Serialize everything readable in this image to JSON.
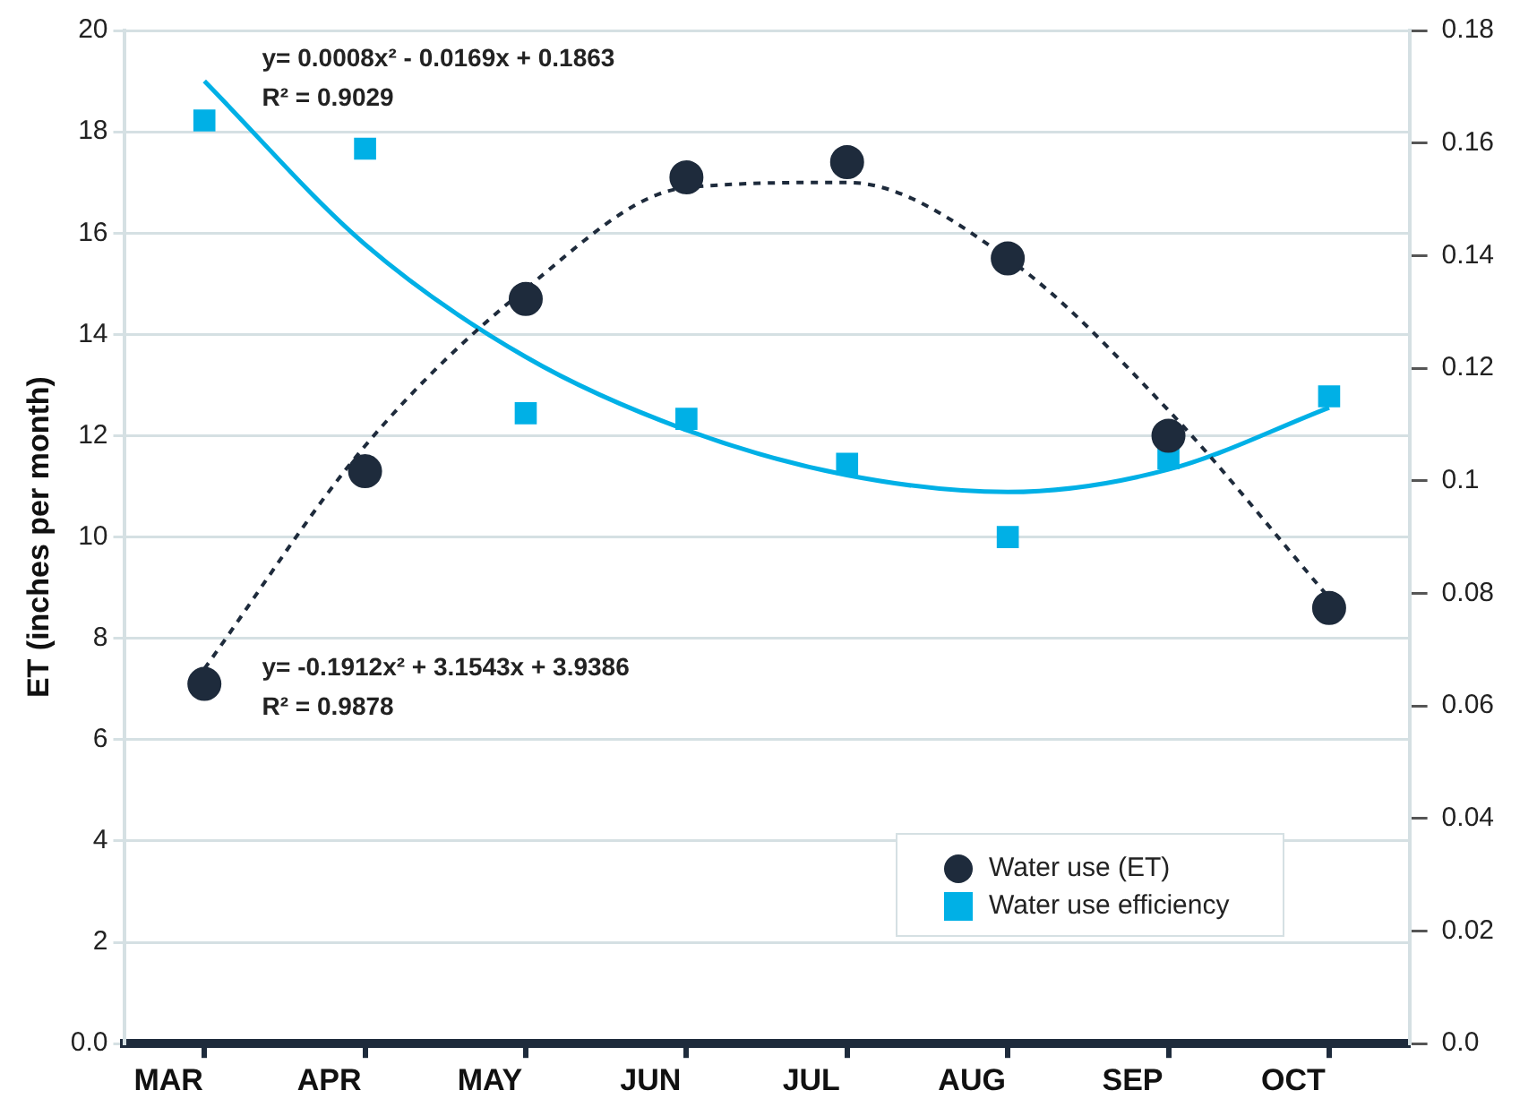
{
  "chart_data": {
    "type": "scatter",
    "ylabel": "ET (inches per month)",
    "categories": [
      "MAR",
      "APR",
      "MAY",
      "JUN",
      "JUL",
      "AUG",
      "SEP",
      "OCT"
    ],
    "series": [
      {
        "name": "Water use (ET)",
        "marker": "circle",
        "color": "#1e2b3c",
        "values": [
          7.1,
          11.3,
          14.7,
          17.1,
          17.4,
          15.5,
          12.0,
          8.6
        ]
      },
      {
        "name": "Water use efficiency",
        "marker": "square",
        "axis": "y2",
        "color": "#00b0e6",
        "values": [
          0.164,
          0.159,
          0.112,
          0.111,
          0.103,
          0.09,
          0.104,
          0.115
        ]
      },
      {
        "type": "line",
        "marker": "none",
        "line_style": "dashed",
        "color": "#1e2b3c",
        "values": [
          7.4,
          11.8,
          14.9,
          16.9,
          17.0,
          15.5,
          12.5,
          8.8
        ]
      },
      {
        "type": "line",
        "marker": "none",
        "line_style": "solid",
        "axis": "y2",
        "color": "#00b0e6",
        "values": [
          0.171,
          0.142,
          0.122,
          0.109,
          0.101,
          0.098,
          0.102,
          0.113
        ]
      }
    ],
    "ylim": [
      0,
      20
    ],
    "yticks": [
      {
        "value": 0,
        "label": "0.0"
      },
      2,
      4,
      6,
      8,
      10,
      12,
      14,
      16,
      18,
      20
    ],
    "y2lim": [
      0,
      0.18
    ],
    "y2ticks": [
      {
        "value": 0,
        "label": "0.0"
      },
      0.02,
      0.04,
      0.06,
      0.08,
      0.1,
      0.12,
      0.14,
      0.16,
      0.18
    ],
    "grid": "y",
    "legend": "bottom right",
    "annotations": [
      "y= 0.0008x² - 0.0169x + 0.1863",
      "R² = 0.9029",
      "y= -0.1912x² + 3.1543x + 3.9386",
      "R² = 0.9878"
    ]
  }
}
